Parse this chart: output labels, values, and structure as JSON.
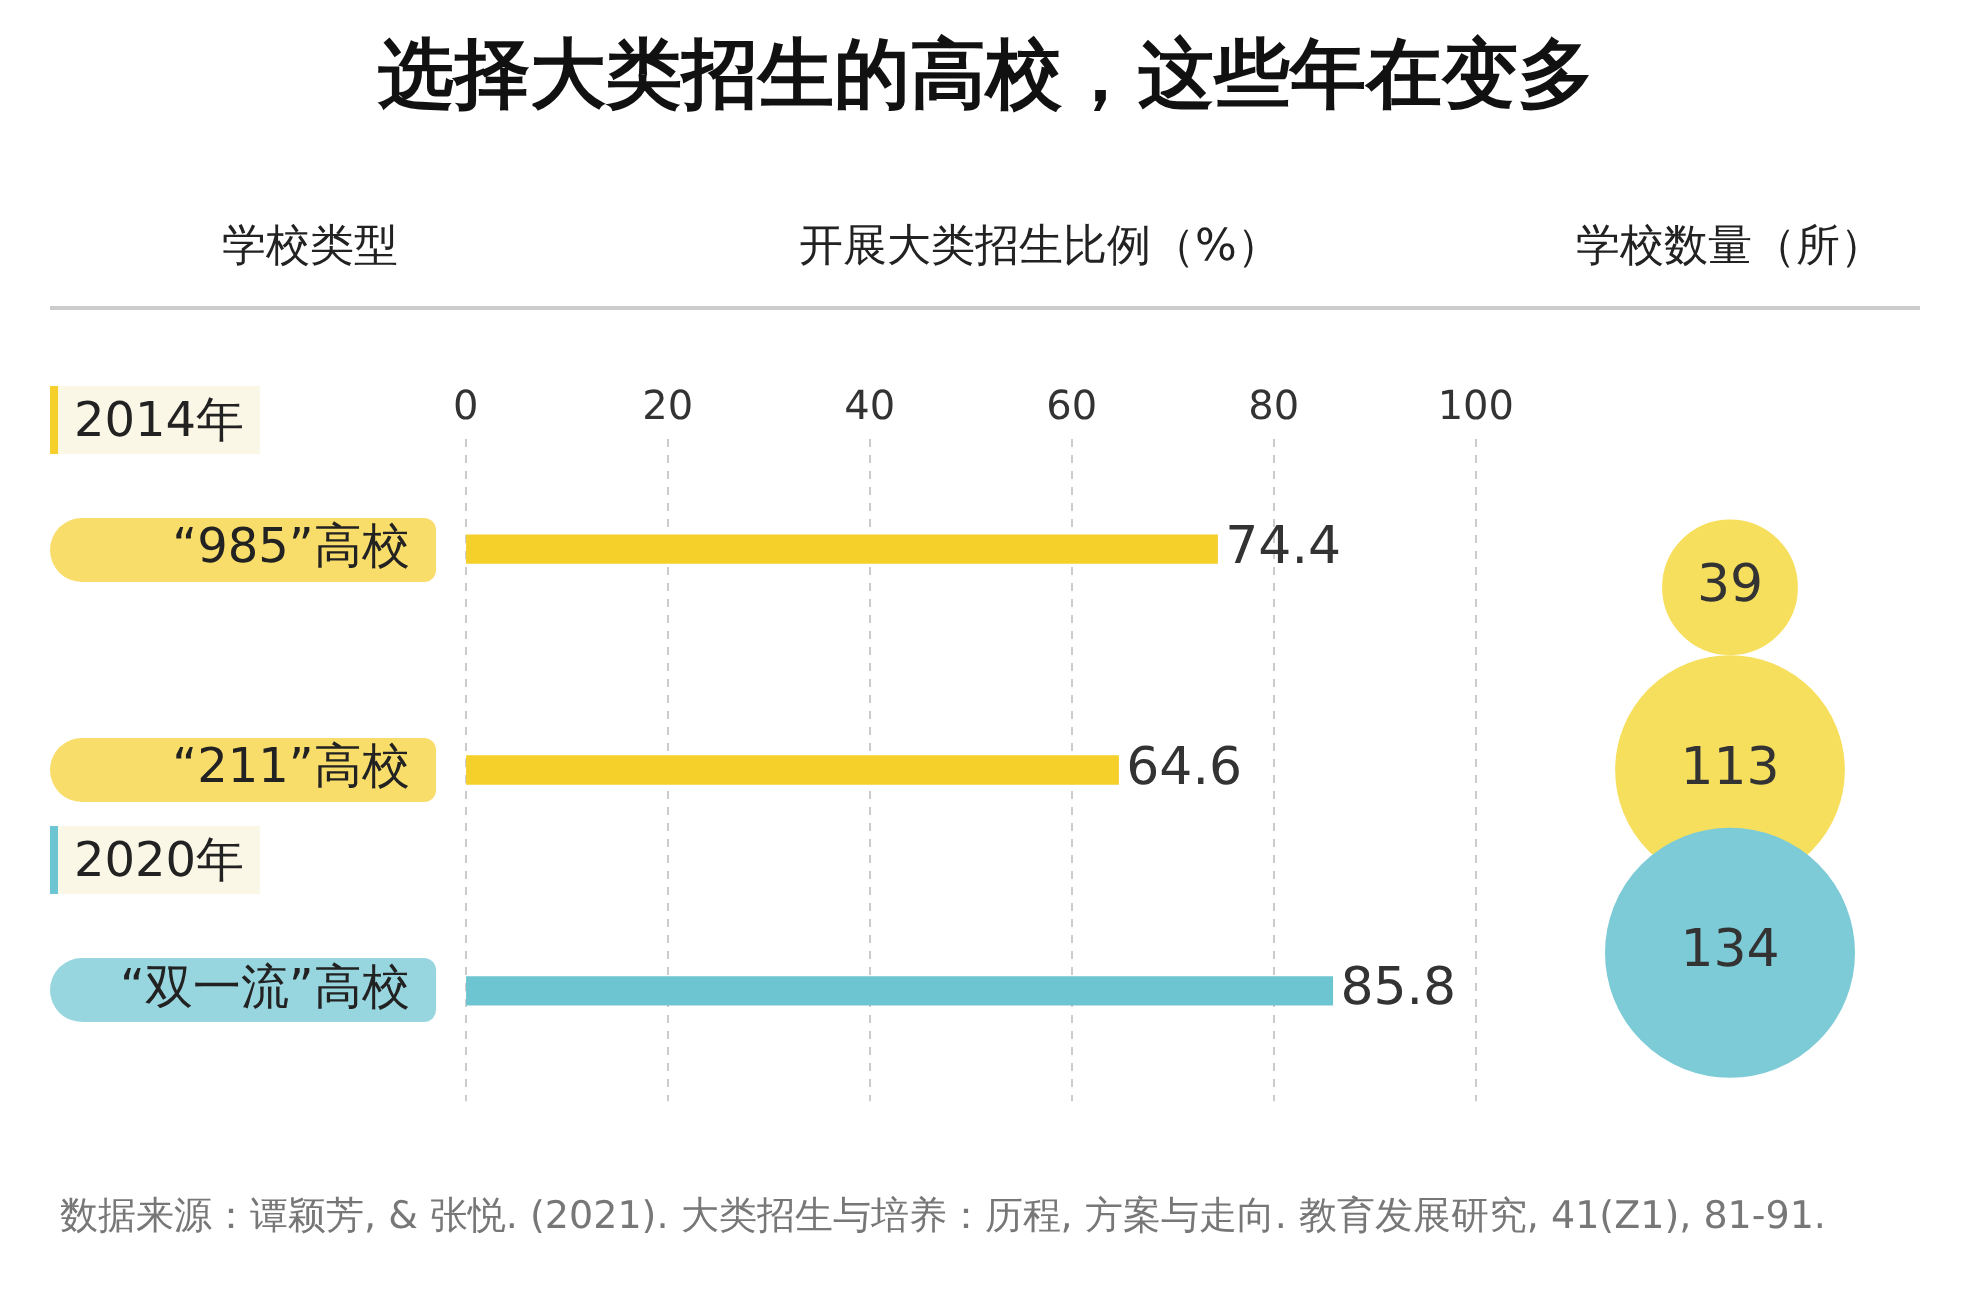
{
  "chart_data": [
    {
      "type": "bar",
      "orientation": "horizontal",
      "title": "选择大类招生的高校，这些年在变多",
      "ylabel": "学校类型",
      "xlabel": "开展大类招生比例（%）",
      "categories": [
        "“985”高校",
        "“211”高校",
        "“双一流”高校"
      ],
      "values": [
        74.4,
        64.6,
        85.8
      ],
      "colors": [
        "#f5cf2a",
        "#f5cf2a",
        "#6cc5d1"
      ],
      "xlim": [
        0,
        100
      ],
      "xticks": [
        0,
        20,
        40,
        60,
        80,
        100
      ],
      "grid": "x",
      "data_labels": true,
      "legend": false,
      "annotations": [
        "2014年",
        "2020年",
        "数据来源：谭颖芳, & 张悦. (2021). 大类招生与培养：历程, 方案与走向. 教育发展研究, 41(Z1), 81-91."
      ]
    },
    {
      "type": "other",
      "title": "学校数量（所）",
      "values": [
        39,
        113,
        134
      ],
      "colors": [
        "#f7df5e",
        "#f7df5e",
        "#7ccbd6"
      ],
      "data_labels": true
    }
  ]
}
